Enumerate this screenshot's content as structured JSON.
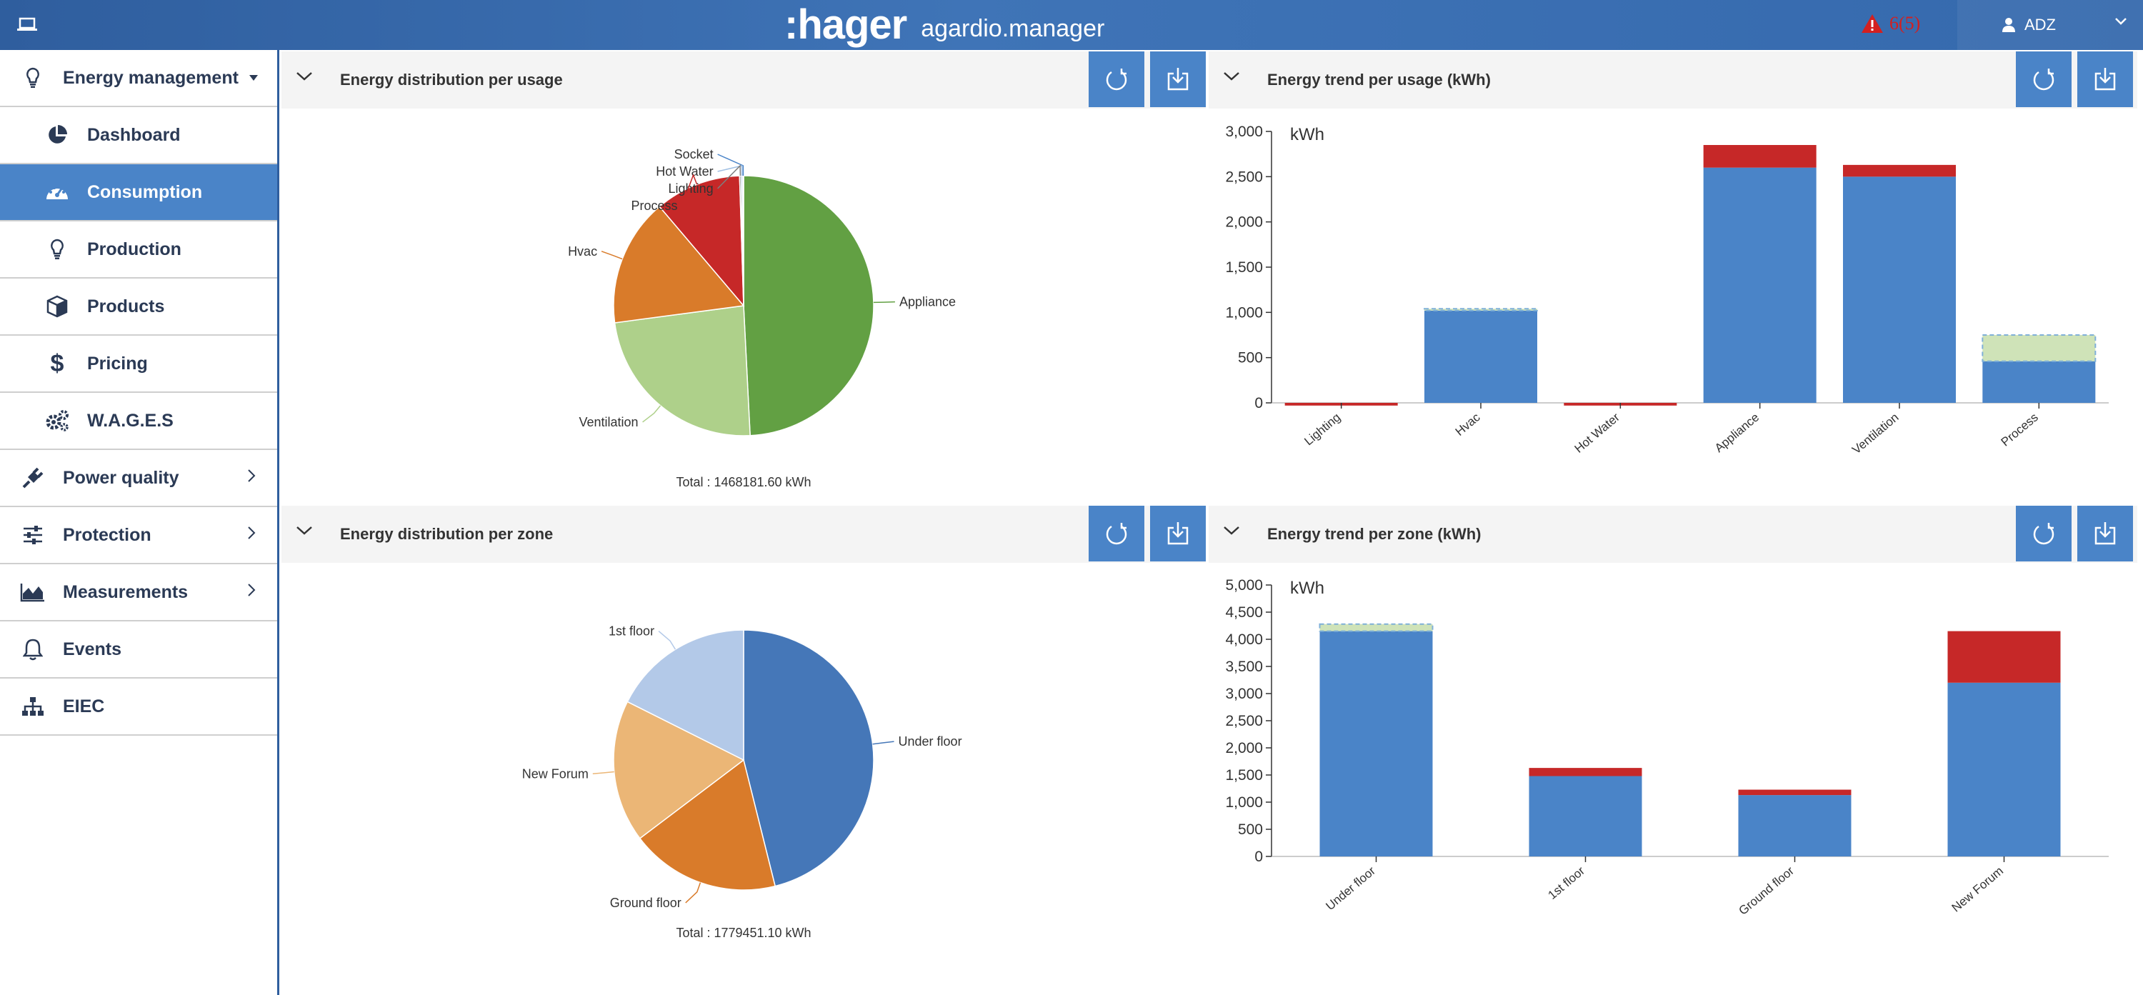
{
  "app": {
    "brand": ":hager",
    "product": "agardio.manager",
    "alerts": "6(5)",
    "user": "ADZ"
  },
  "sidebar": {
    "items": [
      {
        "label": "Energy management",
        "icon": "lightbulb-icon",
        "level": "top",
        "expanded": true
      },
      {
        "label": "Dashboard",
        "icon": "pie-chart-icon",
        "level": "sub"
      },
      {
        "label": "Consumption",
        "icon": "gauge-icon",
        "level": "sub",
        "active": true
      },
      {
        "label": "Production",
        "icon": "lightbulb-icon",
        "level": "sub"
      },
      {
        "label": "Products",
        "icon": "cube-icon",
        "level": "sub"
      },
      {
        "label": "Pricing",
        "icon": "dollar-icon",
        "level": "sub"
      },
      {
        "label": "W.A.G.E.S",
        "icon": "gears-icon",
        "level": "sub"
      },
      {
        "label": "Power quality",
        "icon": "plug-icon",
        "level": "top"
      },
      {
        "label": "Protection",
        "icon": "sliders-icon",
        "level": "top"
      },
      {
        "label": "Measurements",
        "icon": "area-chart-icon",
        "level": "top"
      },
      {
        "label": "Events",
        "icon": "bell-icon",
        "level": "top"
      },
      {
        "label": "EIEC",
        "icon": "sitemap-icon",
        "level": "top"
      }
    ]
  },
  "panels": {
    "usage_dist": {
      "title": "Energy distribution per usage",
      "total": "Total : 1468181.60 kWh"
    },
    "usage_trend": {
      "title": "Energy trend per usage (kWh)",
      "unit": "kWh"
    },
    "zone_dist": {
      "title": "Energy distribution per zone",
      "total": "Total : 1779451.10 kWh"
    },
    "zone_trend": {
      "title": "Energy trend per zone (kWh)",
      "unit": "kWh"
    }
  },
  "colors": {
    "accent": "#4a84c8",
    "sidebar_text": "#2b3a55",
    "alert_red": "#d32020",
    "bar_red": "#c62828"
  },
  "chart_data": [
    {
      "type": "pie",
      "categories": [
        "Appliance",
        "Ventilation",
        "Hvac",
        "Process",
        "Lighting",
        "Hot Water",
        "Socket"
      ],
      "values": [
        49.2,
        23.7,
        15.9,
        10.7,
        0.2,
        0.2,
        0.1
      ],
      "colors": [
        "#62a043",
        "#aed08a",
        "#d97b2a",
        "#c62828",
        "#7f7f7f",
        "#9fbfe3",
        "#4a84c8"
      ],
      "title": "",
      "total_label": "Total : 1468181.60 kWh"
    },
    {
      "type": "bar",
      "stacked": true,
      "categories": [
        "Lighting",
        "Hvac",
        "Hot Water",
        "Appliance",
        "Ventilation",
        "Process"
      ],
      "series": [
        {
          "values": [
            0,
            1020,
            0,
            2600,
            2500,
            460
          ],
          "color": "#4a84c8"
        },
        {
          "values": [
            -30,
            0,
            -30,
            250,
            130,
            0
          ],
          "color": "#c62828"
        },
        {
          "values": [
            0,
            20,
            0,
            0,
            0,
            290
          ],
          "color": "#cfe3b8",
          "dashed": true
        }
      ],
      "ylabel": "kWh",
      "ylim": [
        0,
        3000
      ],
      "yticks": [
        "0",
        "500",
        "1,000",
        "1,500",
        "2,000",
        "2,500",
        "3,000"
      ],
      "grid": false
    },
    {
      "type": "pie",
      "categories": [
        "Under floor",
        "Ground floor",
        "New Forum",
        "1st floor"
      ],
      "values": [
        46.1,
        18.6,
        17.7,
        17.6
      ],
      "colors": [
        "#4577b8",
        "#d97b2a",
        "#ebb676",
        "#b3c9e8"
      ],
      "title": "",
      "total_label": "Total : 1779451.10 kWh"
    },
    {
      "type": "bar",
      "stacked": true,
      "categories": [
        "Under floor",
        "1st floor",
        "Ground floor",
        "New Forum"
      ],
      "series": [
        {
          "values": [
            4150,
            1480,
            1130,
            3200
          ],
          "color": "#4a84c8"
        },
        {
          "values": [
            0,
            150,
            100,
            950
          ],
          "color": "#c62828"
        },
        {
          "values": [
            130,
            0,
            0,
            0
          ],
          "color": "#cfe3b8",
          "dashed": true
        }
      ],
      "ylabel": "kWh",
      "ylim": [
        0,
        5000
      ],
      "yticks": [
        "0",
        "500",
        "1,000",
        "1,500",
        "2,000",
        "2,500",
        "3,000",
        "3,500",
        "4,000",
        "4,500",
        "5,000"
      ],
      "grid": false
    }
  ]
}
